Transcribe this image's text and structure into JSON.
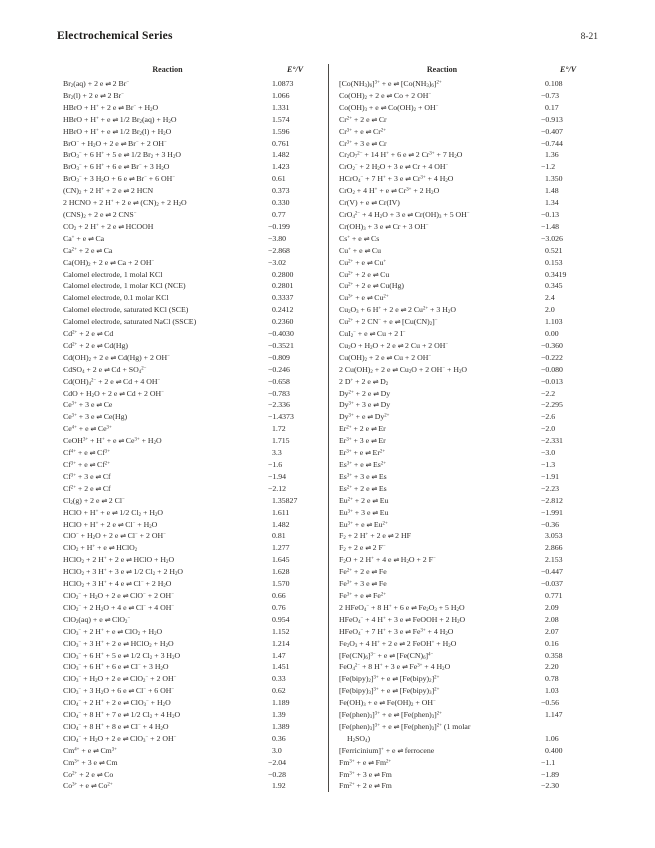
{
  "page": {
    "title": "Electrochemical Series",
    "page_number": "8-21"
  },
  "table": {
    "headers": {
      "reaction": "Reaction",
      "potential": "E°/V"
    },
    "columns": [
      {
        "rows": [
          {
            "r": "Br_{2}(aq) + 2 e ⇌ 2 Br^{−}",
            "v": "1.0873"
          },
          {
            "r": "Br_{2}(l) + 2 e ⇌ 2 Br^{−}",
            "v": "1.066"
          },
          {
            "r": "HBrO + H^{+} + 2 e ⇌ Br^{−} + H_{2}O",
            "v": "1.331"
          },
          {
            "r": "HBrO + H^{+} + e ⇌ 1/2 Br_{2}(aq) + H_{2}O",
            "v": "1.574"
          },
          {
            "r": "HBrO + H^{+} + e ⇌ 1/2 Br_{2}(l) + H_{2}O",
            "v": "1.596"
          },
          {
            "r": "BrO^{−} + H_{2}O + 2 e ⇌ Br^{−} + 2 OH^{−}",
            "v": "0.761"
          },
          {
            "r": "BrO_{3}^{−} + 6 H^{+} + 5 e ⇌ 1/2 Br_{2} + 3 H_{2}O",
            "v": "1.482"
          },
          {
            "r": "BrO_{3}^{−} + 6 H^{+} + 6 e ⇌ Br^{−} + 3 H_{2}O",
            "v": "1.423"
          },
          {
            "r": "BrO_{3}^{−} + 3 H_{2}O + 6 e ⇌ Br^{−} + 6 OH^{−}",
            "v": "0.61"
          },
          {
            "r": "(CN)_{2} + 2 H^{+} + 2 e ⇌ 2 HCN",
            "v": "0.373"
          },
          {
            "r": "2 HCNO + 2 H^{+} + 2 e ⇌ (CN)_{2} + 2 H_{2}O",
            "v": "0.330"
          },
          {
            "r": "(CNS)_{2} + 2 e ⇌ 2 CNS^{−}",
            "v": "0.77"
          },
          {
            "r": "CO_{2} + 2 H^{+} + 2 e ⇌ HCOOH",
            "v": "−0.199"
          },
          {
            "r": "Ca^{+} + e ⇌ Ca",
            "v": "−3.80"
          },
          {
            "r": "Ca^{2+} + 2 e ⇌ Ca",
            "v": "−2.868"
          },
          {
            "r": "Ca(OH)_{2} + 2 e ⇌ Ca + 2 OH^{−}",
            "v": "−3.02"
          },
          {
            "r": "Calomel electrode, 1 molal KCl",
            "v": "0.2800"
          },
          {
            "r": "Calomel electrode, 1  molar KCl (NCE)",
            "v": "0.2801"
          },
          {
            "r": "Calomel electrode, 0.1 molar KCl",
            "v": "0.3337"
          },
          {
            "r": "Calomel electrode, saturated KCl (SCE)",
            "v": "0.2412"
          },
          {
            "r": "Calomel electrode, saturated NaCl (SSCE)",
            "v": "0.2360"
          },
          {
            "r": "Cd^{2+} + 2 e ⇌ Cd",
            "v": "−0.4030"
          },
          {
            "r": "Cd^{2+} + 2 e ⇌ Cd(Hg)",
            "v": "−0.3521"
          },
          {
            "r": "Cd(OH)_{2} + 2 e ⇌ Cd(Hg) + 2 OH^{−}",
            "v": "−0.809"
          },
          {
            "r": "CdSO_{4} + 2 e ⇌ Cd + SO_{4}^{2−}",
            "v": "−0.246"
          },
          {
            "r": "Cd(OH)_{4}^{2−} + 2 e ⇌ Cd + 4 OH^{−}",
            "v": "−0.658"
          },
          {
            "r": "CdO + H_{2}O + 2 e ⇌ Cd + 2 OH^{−}",
            "v": "−0.783"
          },
          {
            "r": "Ce^{3+} + 3 e ⇌ Ce",
            "v": "−2.336"
          },
          {
            "r": "Ce^{3+} + 3 e ⇌ Ce(Hg)",
            "v": "−1.4373"
          },
          {
            "r": "Ce^{4+} + e ⇌ Ce^{3+}",
            "v": "1.72"
          },
          {
            "r": "CeOH^{3+} + H^{+} + e ⇌ Ce^{3+} + H_{2}O",
            "v": "1.715"
          },
          {
            "r": "Cf^{4+} + e ⇌ Cf^{3+}",
            "v": "3.3"
          },
          {
            "r": "Cf^{3+} + e ⇌ Cf^{2+}",
            "v": "−1.6"
          },
          {
            "r": "Cf^{3+} + 3 e ⇌ Cf",
            "v": "−1.94"
          },
          {
            "r": "Cf^{2+} + 2 e ⇌ Cf",
            "v": "−2.12"
          },
          {
            "r": "Cl_{2}(g) + 2 e ⇌ 2 Cl^{−}",
            "v": "1.35827"
          },
          {
            "r": "HClO + H^{+} + e ⇌ 1/2 Cl_{2} + H_{2}O",
            "v": "1.611"
          },
          {
            "r": "HClO + H^{+} + 2 e ⇌ Cl^{−} + H_{2}O",
            "v": "1.482"
          },
          {
            "r": "ClO^{−} + H_{2}O + 2 e ⇌ Cl^{−} + 2 OH^{−}",
            "v": "0.81"
          },
          {
            "r": "ClO_{2} + H^{+} + e ⇌ HClO_{2}",
            "v": "1.277"
          },
          {
            "r": "HClO_{2} + 2 H^{+} + 2 e ⇌ HClO + H_{2}O",
            "v": "1.645"
          },
          {
            "r": "HClO_{2} + 3 H^{+} + 3 e ⇌ 1/2 Cl_{2} + 2 H_{2}O",
            "v": "1.628"
          },
          {
            "r": "HClO_{2} + 3 H^{+} + 4 e ⇌ Cl^{−} + 2 H_{2}O",
            "v": "1.570"
          },
          {
            "r": "ClO_{2}^{−} + H_{2}O + 2 e ⇌ ClO^{−} + 2 OH^{−}",
            "v": "0.66"
          },
          {
            "r": "ClO_{2}^{−} + 2 H_{2}O + 4 e ⇌ Cl^{−} + 4 OH^{−}",
            "v": "0.76"
          },
          {
            "r": "ClO_{2}(aq) + e ⇌ ClO_{2}^{−}",
            "v": "0.954"
          },
          {
            "r": "ClO_{3}^{−} + 2 H^{+} + e ⇌ ClO_{2} + H_{2}O",
            "v": "1.152"
          },
          {
            "r": "ClO_{3}^{−} + 3 H^{+} + 2 e ⇌ HClO_{2} + H_{2}O",
            "v": "1.214"
          },
          {
            "r": "ClO_{3}^{−} + 6 H^{+} + 5 e ⇌ 1/2 Cl_{2} + 3 H_{2}O",
            "v": "1.47"
          },
          {
            "r": "ClO_{3}^{−} + 6 H^{+} + 6 e ⇌ Cl^{−} + 3 H_{2}O",
            "v": "1.451"
          },
          {
            "r": "ClO_{3}^{−} + H_{2}O + 2 e ⇌ ClO_{2}^{−} + 2 OH^{−}",
            "v": "0.33"
          },
          {
            "r": "ClO_{3}^{−} + 3 H_{2}O + 6 e ⇌ Cl^{−} + 6 OH^{−}",
            "v": "0.62"
          },
          {
            "r": "ClO_{4}^{−} + 2 H^{+} + 2 e ⇌ ClO_{3}^{−} + H_{2}O",
            "v": "1.189"
          },
          {
            "r": "ClO_{4}^{−} + 8 H^{+} + 7 e ⇌ 1/2 Cl_{2} + 4 H_{2}O",
            "v": "1.39"
          },
          {
            "r": "ClO_{4}^{−} + 8 H^{+} + 8 e ⇌ Cl^{−} + 4 H_{2}O",
            "v": "1.389"
          },
          {
            "r": "ClO_{4}^{−} + H_{2}O + 2 e ⇌ ClO_{3}^{−} + 2 OH^{−}",
            "v": "0.36"
          },
          {
            "r": "Cm^{4+} + e ⇌ Cm^{3+}",
            "v": "3.0"
          },
          {
            "r": "Cm^{3+} + 3 e ⇌ Cm",
            "v": "−2.04"
          },
          {
            "r": "Co^{2+} + 2 e ⇌ Co",
            "v": "−0.28"
          },
          {
            "r": "Co^{3+} + e ⇌ Co^{2+}",
            "v": "1.92"
          }
        ]
      },
      {
        "rows": [
          {
            "r": "[Co(NH_{3})_{6}]^{3+} + e ⇌ [Co(NH_{3})_{6}]^{2+}",
            "v": "0.108"
          },
          {
            "r": "Co(OH)_{2} + 2 e ⇌ Co + 2 OH^{−}",
            "v": "−0.73"
          },
          {
            "r": "Co(OH)_{3} + e ⇌ Co(OH)_{2} + OH^{−}",
            "v": "0.17"
          },
          {
            "r": "Cr^{2+} + 2 e ⇌ Cr",
            "v": "−0.913"
          },
          {
            "r": "Cr^{3+} + e ⇌ Cr^{2+}",
            "v": "−0.407"
          },
          {
            "r": "Cr^{3+} + 3 e ⇌ Cr",
            "v": "−0.744"
          },
          {
            "r": "Cr_{2}O_{7}^{2−} + 14 H^{+} + 6 e ⇌ 2 Cr^{3+} + 7 H_{2}O",
            "v": "1.36"
          },
          {
            "r": "CrO_{2}^{−} + 2 H_{2}O + 3 e ⇌ Cr + 4 OH^{−}",
            "v": "−1.2"
          },
          {
            "r": "HCrO_{4}^{−} + 7 H^{+} + 3 e ⇌ Cr^{3+} + 4 H_{2}O",
            "v": "1.350"
          },
          {
            "r": "CrO_{2} + 4 H^{+} + e ⇌ Cr^{3+} + 2 H_{2}O",
            "v": "1.48"
          },
          {
            "r": "Cr(V) + e ⇌ Cr(IV)",
            "v": "1.34"
          },
          {
            "r": "CrO_{4}^{2−} + 4 H_{2}O + 3 e ⇌ Cr(OH)_{3} + 5 OH^{−}",
            "v": "−0.13"
          },
          {
            "r": "Cr(OH)_{3} + 3 e ⇌ Cr + 3 OH^{−}",
            "v": "−1.48"
          },
          {
            "r": "Cs^{+} + e ⇌ Cs",
            "v": "−3.026"
          },
          {
            "r": "Cu^{+} + e ⇌ Cu",
            "v": "0.521"
          },
          {
            "r": "Cu^{2+} + e ⇌ Cu^{+}",
            "v": "0.153"
          },
          {
            "r": "Cu^{2+} + 2 e ⇌ Cu",
            "v": "0.3419"
          },
          {
            "r": "Cu^{2+} + 2 e ⇌ Cu(Hg)",
            "v": "0.345"
          },
          {
            "r": "Cu^{3+} + e ⇌ Cu^{2+}",
            "v": "2.4"
          },
          {
            "r": "Cu_{2}O_{3} + 6 H^{+} + 2 e ⇌ 2 Cu^{2+} + 3 H_{2}O",
            "v": "2.0"
          },
          {
            "r": "Cu^{2+} + 2 CN^{−} + e ⇌ [Cu(CN)_{2}]^{−}",
            "v": "1.103"
          },
          {
            "r": "CuI_{2}^{−} + e ⇌ Cu + 2 I^{−}",
            "v": "0.00"
          },
          {
            "r": "Cu_{2}O + H_{2}O + 2 e ⇌ 2 Cu + 2 OH^{−}",
            "v": "−0.360"
          },
          {
            "r": "Cu(OH)_{2} + 2 e ⇌ Cu + 2 OH^{−}",
            "v": "−0.222"
          },
          {
            "r": "2 Cu(OH)_{2} + 2 e ⇌ Cu_{2}O + 2 OH^{−} + H_{2}O",
            "v": "−0.080"
          },
          {
            "r": "2 D^{+} + 2 e ⇌ D_{2}",
            "v": "−0.013"
          },
          {
            "r": "Dy^{2+} + 2 e ⇌ Dy",
            "v": "−2.2"
          },
          {
            "r": "Dy^{3+} + 3 e ⇌ Dy",
            "v": "−2.295"
          },
          {
            "r": "Dy^{3+} + e ⇌ Dy^{2+}",
            "v": "−2.6"
          },
          {
            "r": "Er^{2+} + 2 e ⇌ Er",
            "v": "−2.0"
          },
          {
            "r": "Er^{3+} + 3 e ⇌ Er",
            "v": "−2.331"
          },
          {
            "r": "Er^{3+} + e ⇌ Er^{2+}",
            "v": "−3.0"
          },
          {
            "r": "Es^{3+} + e ⇌ Es^{2+}",
            "v": "−1.3"
          },
          {
            "r": "Es^{3+} + 3 e ⇌ Es",
            "v": "−1.91"
          },
          {
            "r": "Es^{2+} + 2 e ⇌ Es",
            "v": "−2.23"
          },
          {
            "r": "Eu^{2+} + 2 e ⇌ Eu",
            "v": "−2.812"
          },
          {
            "r": "Eu^{3+} + 3 e ⇌ Eu",
            "v": "−1.991"
          },
          {
            "r": "Eu^{3+} + e ⇌ Eu^{2+}",
            "v": "−0.36"
          },
          {
            "r": "F_{2} + 2 H^{+} + 2 e ⇌ 2 HF",
            "v": "3.053"
          },
          {
            "r": "F_{2} + 2 e ⇌ 2 F^{−}",
            "v": "2.866"
          },
          {
            "r": "F_{2}O + 2 H^{+} + 4 e ⇌ H_{2}O + 2 F^{−}",
            "v": "2.153"
          },
          {
            "r": "Fe^{2+} + 2 e ⇌ Fe",
            "v": "−0.447"
          },
          {
            "r": "Fe^{3+} + 3 e ⇌ Fe",
            "v": "−0.037"
          },
          {
            "r": "Fe^{3+} + e ⇌ Fe^{2+}",
            "v": "0.771"
          },
          {
            "r": "2 HFeO_{4}^{−} + 8 H^{+} + 6 e ⇌ Fe_{2}O_{3} + 5 H_{2}O",
            "v": "2.09"
          },
          {
            "r": "HFeO_{4}^{−} + 4 H^{+} + 3 e ⇌ FeOOH + 2 H_{2}O",
            "v": "2.08"
          },
          {
            "r": "HFeO_{4}^{−} + 7 H^{+} + 3 e ⇌ Fe^{3+} + 4 H_{2}O",
            "v": "2.07"
          },
          {
            "r": "Fe_{2}O_{3} + 4 H^{+} + 2 e ⇌ 2 FeOH^{+} + H_{2}O",
            "v": "0.16"
          },
          {
            "r": "[Fe(CN)_{6}]^{3−} + e ⇌ [Fe(CN)_{6}]^{4−}",
            "v": "0.358"
          },
          {
            "r": "FeO_{4}^{2−} + 8 H^{+} + 3 e ⇌ Fe^{3+} + 4 H_{2}O",
            "v": "2.20"
          },
          {
            "r": "[Fe(bipy)_{2}]^{3+} + e ⇌ [Fe(bipy)_{2}]^{2+}",
            "v": "0.78"
          },
          {
            "r": "[Fe(bipy)_{3}]^{3+} + e ⇌ [Fe(bipy)_{3}]^{2+}",
            "v": "1.03"
          },
          {
            "r": "Fe(OH)_{3} + e ⇌ Fe(OH)_{2} + OH^{−}",
            "v": "−0.56"
          },
          {
            "r": "[Fe(phen)_{3}]^{3+} + e ⇌ [Fe(phen)_{3}]^{2+}",
            "v": "1.147"
          },
          {
            "r": "[Fe(phen)_{3}]^{3+} + e ⇌ [Fe(phen)_{3}]^{2+} (1 molar",
            "r2": "H_{2}SO_{4})",
            "v": "1.06"
          },
          {
            "r": "[Ferricinium]^{+} + e ⇌ ferrocene",
            "v": "0.400"
          },
          {
            "r": "Fm^{3+} + e ⇌ Fm^{2+}",
            "v": "−1.1"
          },
          {
            "r": "Fm^{3+} + 3 e ⇌ Fm",
            "v": "−1.89"
          },
          {
            "r": "Fm^{2+} + 2 e ⇌ Fm",
            "v": "−2.30"
          }
        ]
      }
    ]
  }
}
